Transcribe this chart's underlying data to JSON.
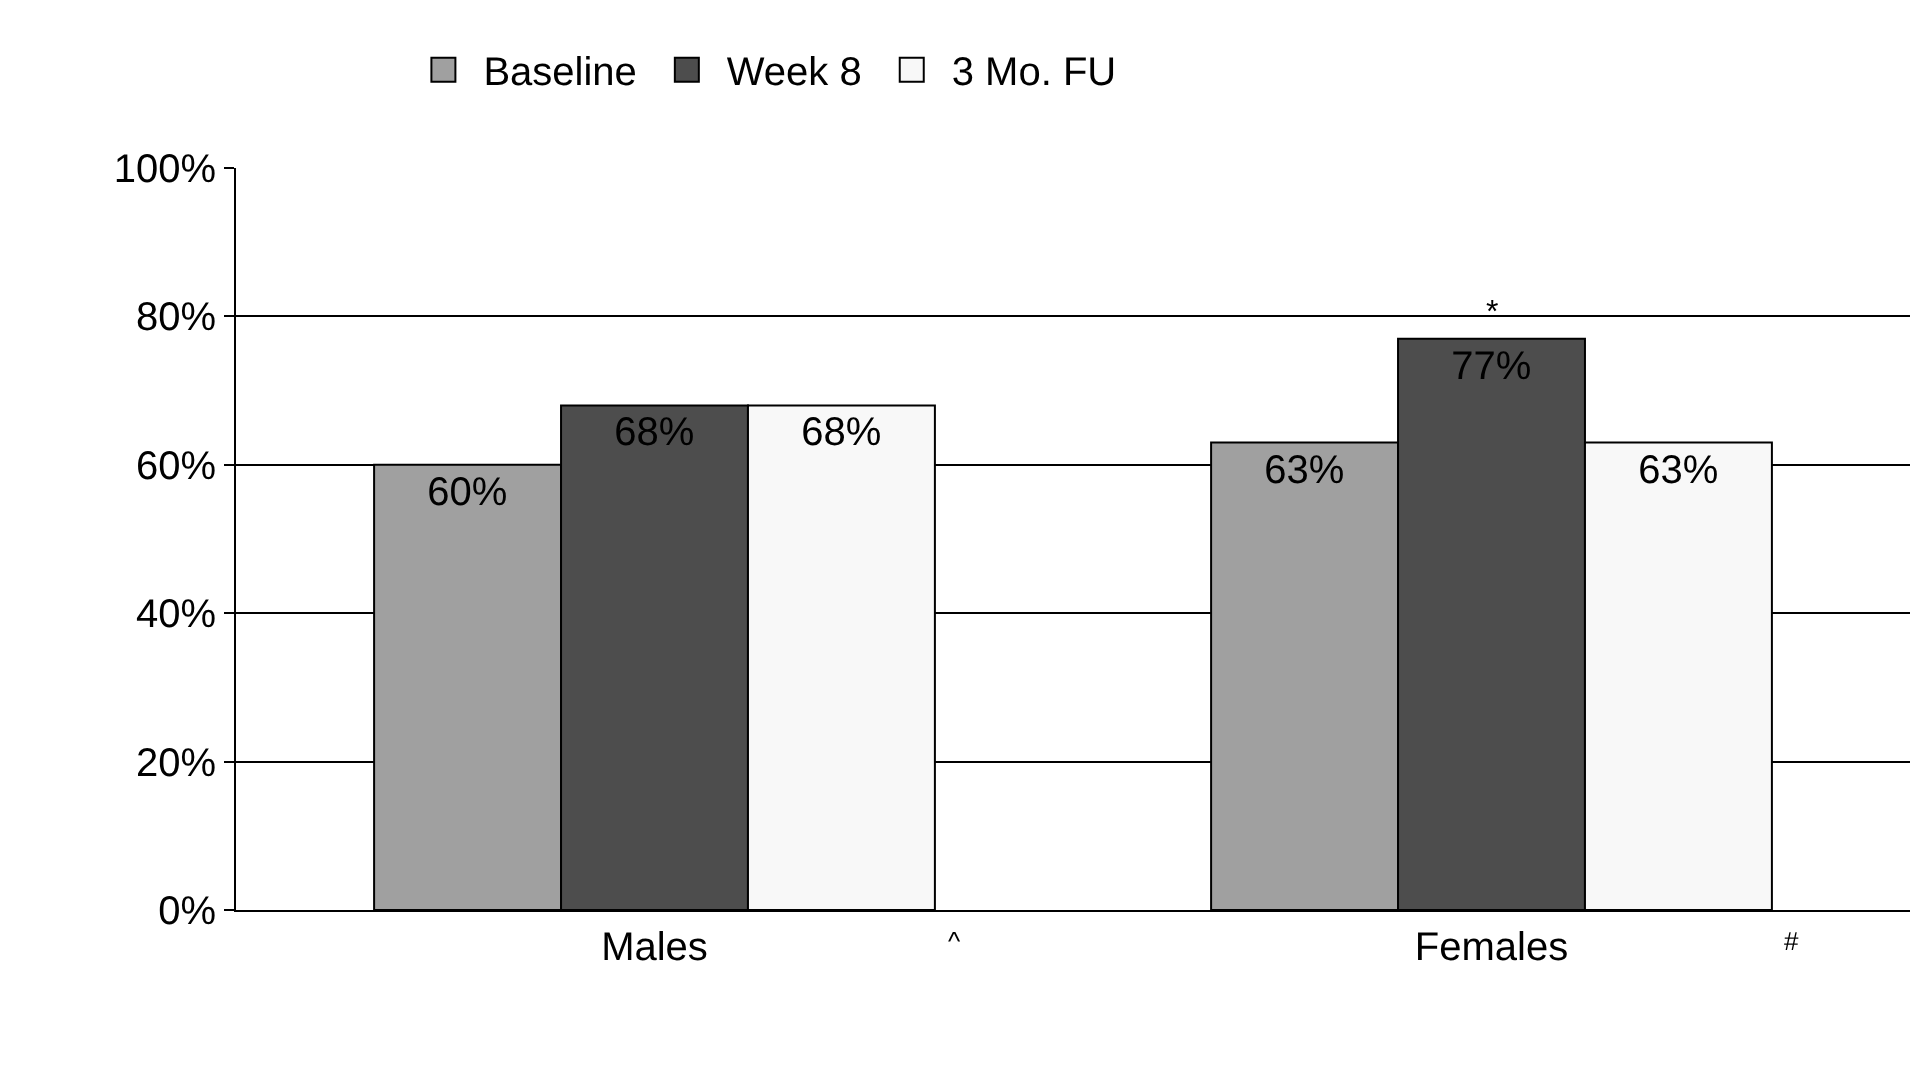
{
  "chart_data": {
    "type": "bar",
    "categories": [
      "Males",
      "Females"
    ],
    "series": [
      {
        "name": "Baseline",
        "color": "#a0a0a0",
        "values": [
          60,
          63
        ]
      },
      {
        "name": "Week 8",
        "color": "#4d4d4d",
        "values": [
          68,
          77
        ]
      },
      {
        "name": "3 Mo. FU",
        "color": "#f8f8f8",
        "values": [
          68,
          63
        ]
      }
    ],
    "value_labels": [
      [
        "60%",
        "63%"
      ],
      [
        "68%",
        "77%"
      ],
      [
        "68%",
        "63%"
      ]
    ],
    "ylim": [
      0,
      100
    ],
    "yticks": [
      {
        "value": 0,
        "label": "0%"
      },
      {
        "value": 20,
        "label": "20%"
      },
      {
        "value": 40,
        "label": "40%"
      },
      {
        "value": 60,
        "label": "60%"
      },
      {
        "value": 80,
        "label": "80%"
      },
      {
        "value": 100,
        "label": "100%"
      }
    ],
    "annotations": [
      {
        "text": "*",
        "x": "Females",
        "y": 77
      },
      "^",
      "#"
    ],
    "grid": "y",
    "legend": "top"
  }
}
